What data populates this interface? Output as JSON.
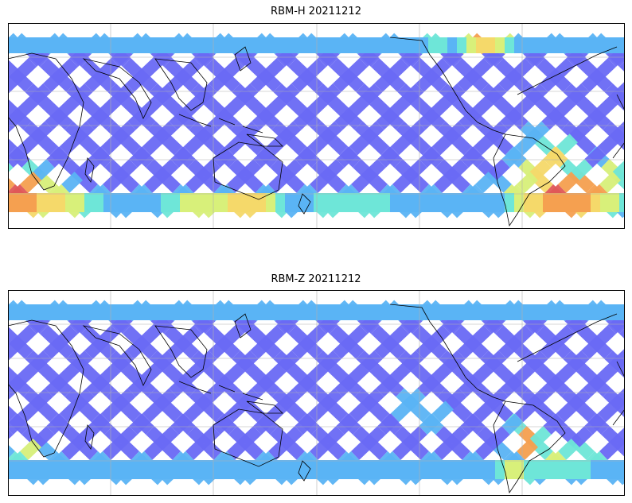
{
  "panels": [
    {
      "title": "RBM-H 20211212",
      "colormap": "jet",
      "high_value_regions": [
        "south-west Indian Ocean",
        "southern ocean south of Australia",
        "North Pacific near 60N",
        "South Atlantic east of Argentina"
      ]
    },
    {
      "title": "RBM-Z 20211212",
      "colormap": "jet",
      "high_value_regions": [
        "South Atlantic east of Argentina (moderate)"
      ]
    }
  ],
  "colors": {
    "low": "#6a6af5",
    "mid_low": "#5ab4f5",
    "mid": "#6ee6d8",
    "mid_high": "#d8f07a",
    "high_yellow": "#f5d96a",
    "high_orange": "#f5a050",
    "high_red": "#e05858",
    "grid": "#b0b0b0",
    "coast": "#000000"
  },
  "map": {
    "projection": "PlateCarree",
    "central_longitude": 180,
    "lat_band": "approximately -65 to 65",
    "gridlines": true
  }
}
